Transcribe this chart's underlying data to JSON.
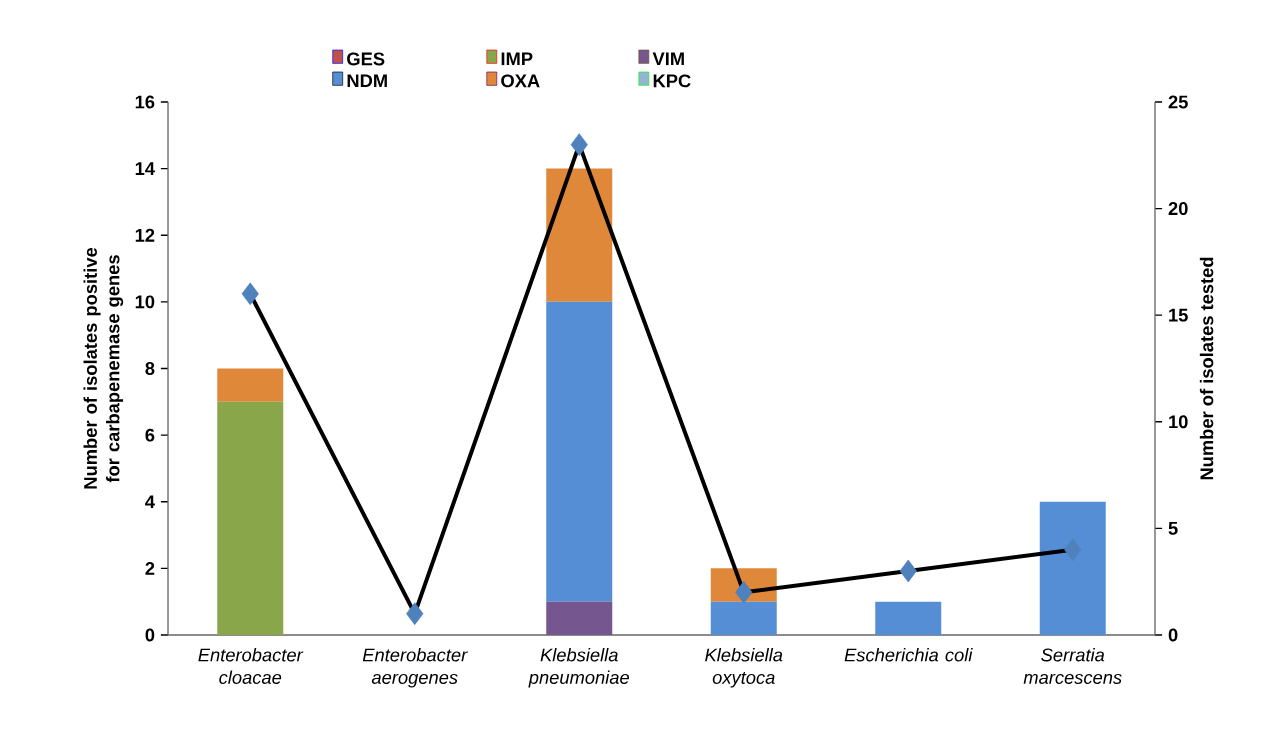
{
  "chart_data": {
    "type": "bar",
    "stacked": true,
    "categories": [
      "Enterobacter cloacae",
      "Enterobacter aerogenes",
      "Klebsiella pneumoniae",
      "Klebsiella oxytoca",
      "Escherichia coli",
      "Serratia marcescens"
    ],
    "series": [
      {
        "name": "GES",
        "color": "#c0504d",
        "values": [
          0,
          0,
          0,
          0,
          0,
          0
        ]
      },
      {
        "name": "IMP",
        "color": "#8aa64a",
        "values": [
          7,
          0,
          0,
          0,
          0,
          0
        ]
      },
      {
        "name": "VIM",
        "color": "#76568f",
        "values": [
          0,
          0,
          1,
          0,
          0,
          0
        ]
      },
      {
        "name": "NDM",
        "color": "#558ed5",
        "values": [
          0,
          0,
          9,
          1,
          1,
          4
        ]
      },
      {
        "name": "OXA",
        "color": "#e0883a",
        "values": [
          1,
          0,
          4,
          1,
          0,
          0
        ]
      },
      {
        "name": "KPC",
        "color": "#95b3d7",
        "values": [
          0,
          0,
          0,
          0,
          0,
          0
        ]
      },
      {
        "type": "line",
        "axis": "y2",
        "color": "#000000",
        "marker": "diamond",
        "colors": [
          "#4f81bd",
          "#4f81bd",
          "#4f81bd",
          "#4f81bd",
          "#4f81bd",
          "#4f81bd"
        ],
        "values": [
          16,
          1,
          23,
          2,
          3,
          4
        ]
      }
    ],
    "ylim": [
      0,
      16
    ],
    "yticks": [
      0,
      2,
      4,
      6,
      8,
      10,
      12,
      14,
      16
    ],
    "y2lim": [
      0,
      25
    ],
    "y2ticks": [
      0,
      5,
      10,
      15,
      20,
      25
    ],
    "ylabel": "Number of isolates positive for carbapenemase genes",
    "y2label": "Number of isolates tested",
    "legend": "top"
  }
}
